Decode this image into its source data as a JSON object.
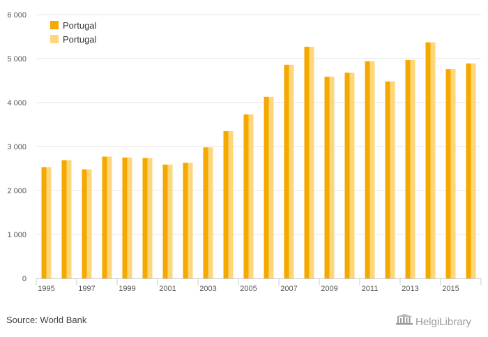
{
  "chart_data": {
    "type": "bar",
    "categories": [
      "1995",
      "1996",
      "1997",
      "1998",
      "1999",
      "2000",
      "2001",
      "2002",
      "2003",
      "2004",
      "2005",
      "2006",
      "2007",
      "2008",
      "2009",
      "2010",
      "2011",
      "2012",
      "2013",
      "2014",
      "2015",
      "2016"
    ],
    "x_tick_labels": [
      "1995",
      "1997",
      "1999",
      "2001",
      "2003",
      "2005",
      "2007",
      "2009",
      "2011",
      "2013",
      "2015"
    ],
    "y_tick_labels": [
      "0",
      "1 000",
      "2 000",
      "3 000",
      "4 000",
      "5 000",
      "6 000"
    ],
    "ylim": [
      0,
      6000
    ],
    "series": [
      {
        "name": "Portugal",
        "color": "#F5A800",
        "values": [
          2530,
          2690,
          2480,
          2770,
          2750,
          2740,
          2590,
          2630,
          2980,
          3350,
          3730,
          4130,
          4860,
          5270,
          4590,
          4680,
          4940,
          4480,
          4970,
          5370,
          4760,
          4890
        ]
      },
      {
        "name": "Portugal",
        "color": "#FDD77A",
        "values": [
          2530,
          2690,
          2480,
          2770,
          2750,
          2740,
          2590,
          2630,
          2980,
          3350,
          3730,
          4130,
          4860,
          5270,
          4590,
          4680,
          4940,
          4480,
          4970,
          5370,
          4760,
          4890
        ]
      }
    ],
    "title": "",
    "xlabel": "",
    "ylabel": "",
    "grid": true,
    "legend_position": "top-left"
  },
  "source": "Source: World Bank",
  "logo": {
    "text": "HelgiLibrary",
    "icon": "building-icon",
    "color": "#9a9a9a"
  },
  "colors": {
    "grid": "#e6e6e6",
    "axis": "#cccccc"
  }
}
